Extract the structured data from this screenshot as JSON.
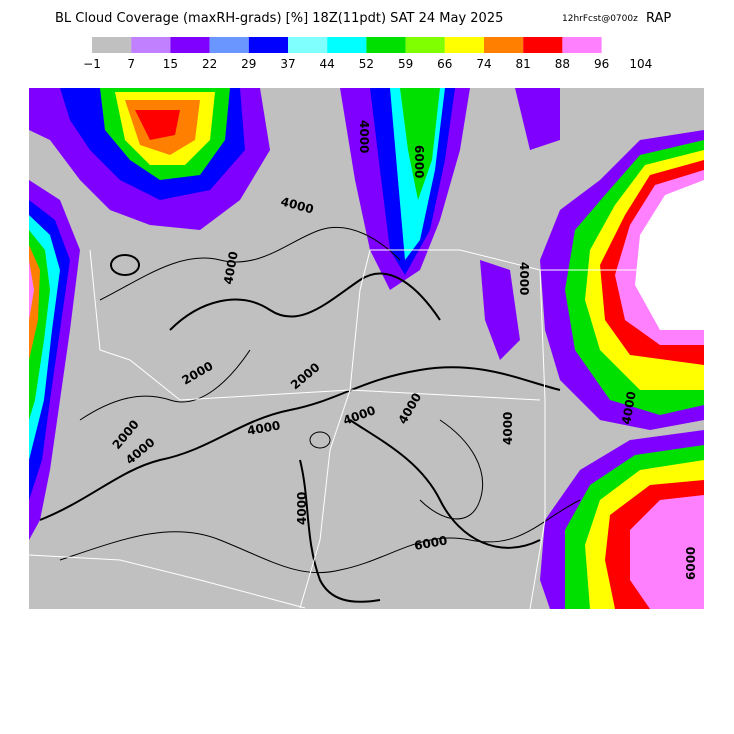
{
  "header": {
    "title": "BL Cloud Coverage (maxRH-grads) [%] 18Z(11pdt) SAT 24 May 2025",
    "forecast": "12hrFcst@0700z",
    "model": "RAP"
  },
  "colorbar": {
    "colors": [
      "#c0c0c0",
      "#c080ff",
      "#8000ff",
      "#6a96ff",
      "#0000ff",
      "#80ffff",
      "#00ffff",
      "#00e000",
      "#80ff00",
      "#ffff00",
      "#ff8000",
      "#ff0000",
      "#ff80ff"
    ],
    "labels": [
      "−1",
      "7",
      "15",
      "22",
      "29",
      "37",
      "44",
      "52",
      "59",
      "66",
      "74",
      "81",
      "88",
      "96",
      "104"
    ]
  },
  "map": {
    "contour_labels": [
      "4000",
      "6000",
      "4000",
      "4000",
      "2000",
      "2000",
      "2000",
      "4000",
      "4000",
      "4000",
      "4000",
      "4000",
      "4000",
      "6000",
      "4000",
      "4000",
      "6000"
    ]
  }
}
